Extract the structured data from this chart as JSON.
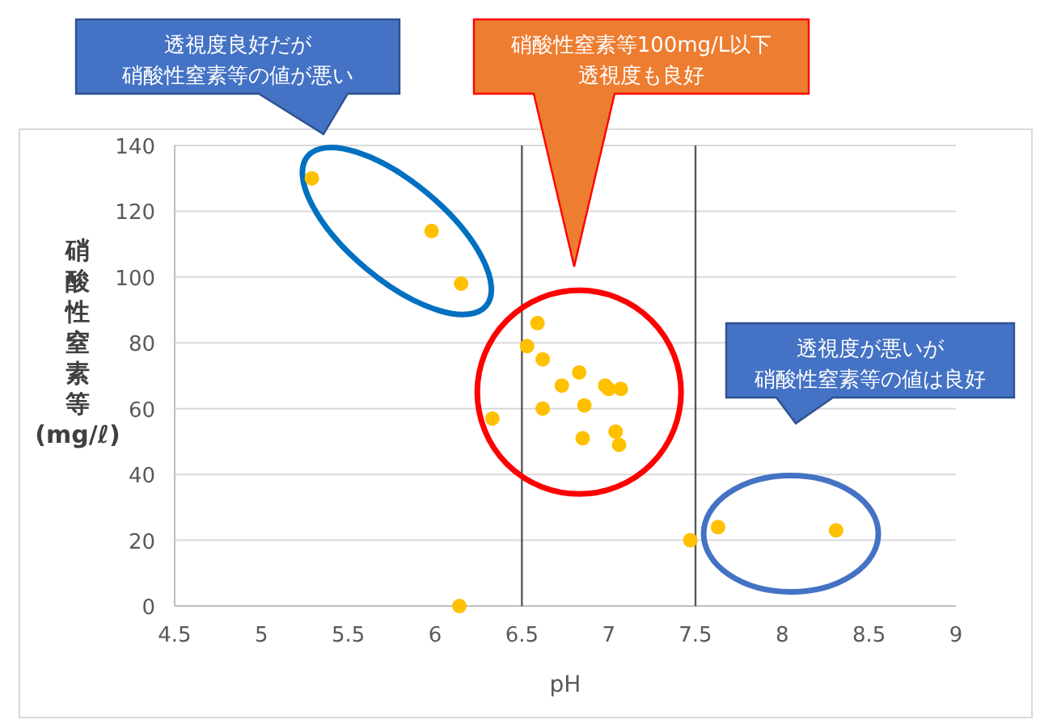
{
  "chart_data": {
    "type": "scatter",
    "xlabel": "pH",
    "ylabel": "硝酸性窒素等(mg/ℓ)",
    "x": [
      5.29,
      5.98,
      6.15,
      6.14,
      6.33,
      6.59,
      6.53,
      6.62,
      6.83,
      6.73,
      6.98,
      7.0,
      7.07,
      6.86,
      6.62,
      7.04,
      7.06,
      6.85,
      7.47,
      7.63,
      8.31
    ],
    "values": [
      130,
      114,
      98,
      0,
      57,
      86,
      79,
      75,
      71,
      67,
      67,
      66,
      66,
      61,
      60,
      53,
      49,
      51,
      20,
      24,
      23
    ],
    "color": "#ffc000",
    "marker": "circle",
    "grid": "y",
    "xlim": [
      4.5,
      9.0
    ],
    "xticks": [
      4.5,
      5.0,
      5.5,
      6.0,
      6.5,
      7.0,
      7.5,
      8.0,
      8.5,
      9.0
    ],
    "ylim": [
      0,
      140
    ],
    "yticks": [
      0,
      20,
      40,
      60,
      80,
      100,
      120,
      140
    ],
    "ref_lines": [
      {
        "axis": "x",
        "value": 6.5,
        "color": "#595959"
      },
      {
        "axis": "x",
        "value": 7.5,
        "color": "#595959"
      }
    ],
    "annotations": [
      "透視度良好だが硝酸性窒素等の値が悪い",
      "硝酸性窒素等100mg/L以下透視度も良好",
      "透視度が悪いが硝酸性窒素等の値は良好"
    ]
  }
}
